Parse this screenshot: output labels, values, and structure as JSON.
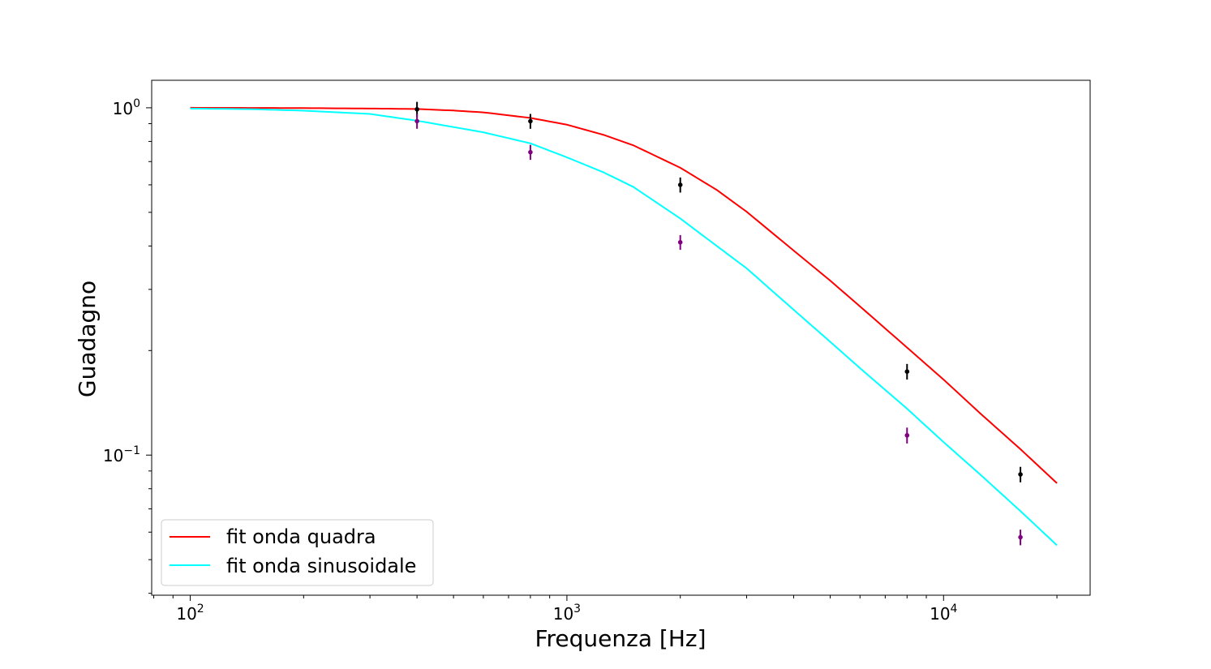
{
  "chart_data": {
    "type": "line",
    "title": "",
    "xlabel": "Frequenza [Hz]",
    "ylabel": "Guadagno",
    "xscale": "log",
    "yscale": "log",
    "xlim": [
      79,
      24500
    ],
    "ylim": [
      0.0395,
      1.2
    ],
    "grid": false,
    "legend_position": "lower-left",
    "x_ticks": [
      {
        "value": 100,
        "base": "10",
        "exp": "2"
      },
      {
        "value": 1000,
        "base": "10",
        "exp": "3"
      },
      {
        "value": 10000,
        "base": "10",
        "exp": "4"
      }
    ],
    "y_ticks": [
      {
        "value": 1,
        "base": "10",
        "exp": "0"
      },
      {
        "value": 0.1,
        "base": "10",
        "exp": "−1"
      }
    ],
    "series": [
      {
        "name": "fit onda quadra",
        "kind": "fit-line",
        "color": "#ff0000",
        "x": [
          100,
          150,
          200,
          300,
          400,
          500,
          600,
          800,
          1000,
          1250,
          1500,
          2000,
          2500,
          3000,
          4000,
          5000,
          6000,
          8000,
          10000,
          12500,
          16000,
          20000
        ],
        "y": [
          1.0,
          0.999,
          0.998,
          0.995,
          0.992,
          0.982,
          0.97,
          0.935,
          0.894,
          0.836,
          0.78,
          0.672,
          0.58,
          0.502,
          0.388,
          0.318,
          0.268,
          0.204,
          0.165,
          0.132,
          0.104,
          0.083
        ]
      },
      {
        "name": "fit onda sinusoidale",
        "kind": "fit-line",
        "color": "#00ffff",
        "x": [
          100,
          150,
          200,
          300,
          400,
          500,
          600,
          800,
          1000,
          1250,
          1500,
          2000,
          2500,
          3000,
          4000,
          5000,
          6000,
          8000,
          10000,
          12500,
          16000,
          20000
        ],
        "y": [
          0.995,
          0.99,
          0.981,
          0.96,
          0.918,
          0.88,
          0.85,
          0.79,
          0.72,
          0.652,
          0.592,
          0.48,
          0.4,
          0.345,
          0.262,
          0.212,
          0.178,
          0.136,
          0.109,
          0.088,
          0.069,
          0.055
        ]
      },
      {
        "name": "",
        "kind": "points",
        "color": "#000000",
        "x": [
          400,
          800,
          2000,
          8000,
          16000
        ],
        "y": [
          0.99,
          0.915,
          0.6,
          0.174,
          0.088
        ],
        "yerr": [
          0.05,
          0.045,
          0.03,
          0.009,
          0.0045
        ]
      },
      {
        "name": "",
        "kind": "points",
        "color": "#800080",
        "x": [
          400,
          800,
          2000,
          8000,
          16000
        ],
        "y": [
          0.915,
          0.745,
          0.41,
          0.114,
          0.058
        ],
        "yerr": [
          0.045,
          0.037,
          0.02,
          0.006,
          0.003
        ]
      }
    ]
  }
}
